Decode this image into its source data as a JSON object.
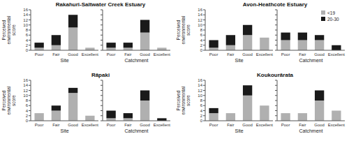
{
  "chart_data": [
    {
      "type": "bar",
      "stacked": true,
      "title": "Rakahuri-Saltwater Creek Estuary",
      "x_label": "Site",
      "y_label": "Perceived environmental score",
      "categories": [
        "Poor",
        "Fair",
        "Good",
        "Excellent"
      ],
      "series": [
        {
          "name": "<19",
          "color": "#b0b0b0",
          "values": [
            1,
            2,
            9,
            1
          ]
        },
        {
          "name": "20-30",
          "color": "#1a1a1a",
          "values": [
            2,
            4,
            5,
            0
          ]
        }
      ],
      "ylim": [
        0,
        16
      ],
      "yticks": [
        0,
        2,
        4,
        6,
        8,
        10,
        12,
        14,
        16
      ]
    },
    {
      "type": "bar",
      "stacked": true,
      "x_label": "Catchment",
      "tick_labels": "x",
      "categories": [
        "Poor",
        "Fair",
        "Good",
        "Excellent"
      ],
      "series": [
        {
          "name": "<19",
          "color": "#b0b0b0",
          "values": [
            1,
            1,
            7,
            1
          ]
        },
        {
          "name": "20-30",
          "color": "#1a1a1a",
          "values": [
            2,
            2,
            5,
            0
          ]
        }
      ],
      "ylim": [
        0,
        16
      ],
      "yticks": [
        0,
        2,
        4,
        6,
        8,
        10,
        12,
        14,
        16
      ]
    },
    {
      "type": "bar",
      "stacked": true,
      "title": "Avon-Heathcote Estuary",
      "x_label": "Site",
      "y_label": "Perceived environmental score",
      "categories": [
        "Poor",
        "Fair",
        "Good",
        "Excellent"
      ],
      "series": [
        {
          "name": "<19",
          "color": "#b0b0b0",
          "values": [
            1,
            2,
            6,
            5
          ]
        },
        {
          "name": "20-30",
          "color": "#1a1a1a",
          "values": [
            3,
            4,
            4,
            0
          ]
        }
      ],
      "ylim": [
        0,
        16
      ],
      "yticks": [
        0,
        2,
        4,
        6,
        8,
        10,
        12,
        14,
        16
      ]
    },
    {
      "type": "bar",
      "stacked": true,
      "x_label": "Catchment",
      "tick_labels": "x",
      "legend": "upper right",
      "categories": [
        "Poor",
        "Fair",
        "Good",
        "Excellent"
      ],
      "series": [
        {
          "name": "<19",
          "color": "#b0b0b0",
          "values": [
            4,
            4,
            4,
            0
          ]
        },
        {
          "name": "20-30",
          "color": "#1a1a1a",
          "values": [
            3,
            3,
            2,
            2
          ]
        }
      ],
      "ylim": [
        0,
        16
      ],
      "yticks": [
        0,
        2,
        4,
        6,
        8,
        10,
        12,
        14,
        16
      ]
    },
    {
      "type": "bar",
      "stacked": true,
      "title": "Rāpaki",
      "x_label": "Site",
      "y_label": "Perceived environmental score",
      "categories": [
        "Poor",
        "Fair",
        "Good",
        "Excellent"
      ],
      "series": [
        {
          "name": "<19",
          "color": "#b0b0b0",
          "values": [
            3,
            4,
            11,
            2
          ]
        },
        {
          "name": "20-30",
          "color": "#1a1a1a",
          "values": [
            0,
            2,
            2,
            0
          ]
        }
      ],
      "ylim": [
        0,
        16
      ],
      "yticks": [
        0,
        2,
        4,
        6,
        8,
        10,
        12,
        14,
        16
      ]
    },
    {
      "type": "bar",
      "stacked": true,
      "x_label": "Catchment",
      "tick_labels": "x",
      "categories": [
        "Poor",
        "Fair",
        "Good",
        "Excellent"
      ],
      "series": [
        {
          "name": "<19",
          "color": "#b0b0b0",
          "values": [
            1,
            1,
            8,
            0
          ]
        },
        {
          "name": "20-30",
          "color": "#1a1a1a",
          "values": [
            3,
            2,
            4,
            1
          ]
        }
      ],
      "ylim": [
        0,
        16
      ],
      "yticks": [
        0,
        2,
        4,
        6,
        8,
        10,
        12,
        14,
        16
      ]
    },
    {
      "type": "bar",
      "stacked": true,
      "title": "Koukourārata",
      "x_label": "Site",
      "y_label": "Perceived environmental score",
      "categories": [
        "Poor",
        "Fair",
        "Good",
        "Excellent"
      ],
      "series": [
        {
          "name": "<19",
          "color": "#b0b0b0",
          "values": [
            3,
            3,
            10,
            6
          ]
        },
        {
          "name": "20-30",
          "color": "#1a1a1a",
          "values": [
            2,
            0,
            4,
            0
          ]
        }
      ],
      "ylim": [
        0,
        16
      ],
      "yticks": [
        0,
        2,
        4,
        6,
        8,
        10,
        12,
        14,
        16
      ]
    },
    {
      "type": "bar",
      "stacked": true,
      "x_label": "Catchment",
      "tick_labels": "x",
      "categories": [
        "Poor",
        "Fair",
        "Good",
        "Excellent"
      ],
      "series": [
        {
          "name": "<19",
          "color": "#b0b0b0",
          "values": [
            3,
            3,
            8,
            4
          ]
        },
        {
          "name": "20-30",
          "color": "#1a1a1a",
          "values": [
            0,
            0,
            4,
            0
          ]
        }
      ],
      "ylim": [
        0,
        16
      ],
      "yticks": [
        0,
        2,
        4,
        6,
        8,
        10,
        12,
        14,
        16
      ]
    }
  ]
}
